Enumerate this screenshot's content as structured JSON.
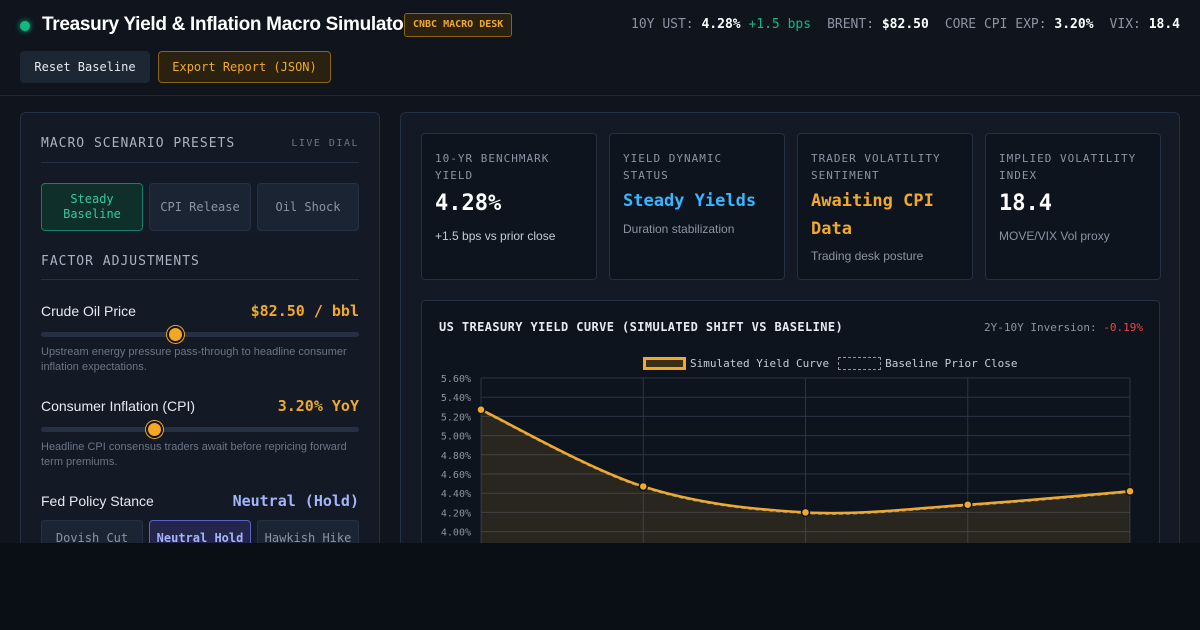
{
  "header": {
    "title": "Treasury Yield & Inflation Macro Simulator",
    "badge": "CNBC MACRO DESK",
    "ticker": {
      "ust_label": "10Y UST:",
      "ust_value": "4.28%",
      "ust_change": "+1.5 bps",
      "brent_label": "BRENT:",
      "brent_value": "$82.50",
      "cpi_label": "CORE CPI EXP:",
      "cpi_value": "3.20%",
      "vix_label": "VIX:",
      "vix_value": "18.4"
    },
    "reset_label": "Reset Baseline",
    "export_label": "Export Report (JSON)"
  },
  "controls": {
    "presets_title": "MACRO SCENARIO PRESETS",
    "live_dial": "LIVE DIAL",
    "presets": [
      "Steady Baseline",
      "CPI Release",
      "Oil Shock"
    ],
    "active_preset": 0,
    "factors_title": "FACTOR ADJUSTMENTS",
    "oil": {
      "label": "Crude Oil Price",
      "value": "$82.50 / bbl",
      "level": 0.42,
      "desc": "Upstream energy pressure pass-through to headline consumer inflation expectations."
    },
    "cpi": {
      "label": "Consumer Inflation (CPI)",
      "value": "3.20% YoY",
      "level": 0.35,
      "desc": "Headline CPI consensus traders await before repricing forward term premiums."
    },
    "fed": {
      "label": "Fed Policy Stance",
      "value": "Neutral (Hold)",
      "options": [
        "Dovish Cut",
        "Neutral Hold",
        "Hawkish Hike"
      ],
      "active": 1
    }
  },
  "kpis": [
    {
      "label": "10-YR BENCHMARK YIELD",
      "value": "4.28%",
      "sub": "+1.5 bps  vs prior close"
    },
    {
      "label": "YIELD DYNAMIC STATUS",
      "value": "Steady Yields",
      "sub": "Duration stabilization"
    },
    {
      "label": "TRADER VOLATILITY SENTIMENT",
      "value": "Awaiting CPI Data",
      "sub": "Trading desk posture"
    },
    {
      "label": "IMPLIED VOLATILITY INDEX",
      "value": "18.4",
      "sub": "MOVE/VIX Vol proxy"
    }
  ],
  "chart": {
    "title": "US TREASURY YIELD CURVE (SIMULATED SHIFT VS BASELINE)",
    "inversion_label": "2Y-10Y Inversion:",
    "inversion_value": "-0.19%",
    "legend_sim": "Simulated Yield Curve",
    "legend_base": "Baseline Prior Close",
    "colors": {
      "simulated": "#f0a92a",
      "baseline": "#8b94a3",
      "grid": "#2a3444"
    }
  },
  "chart_data": {
    "type": "line",
    "y_tick_labels": [
      "5.60%",
      "5.40%",
      "5.20%",
      "5.00%",
      "4.80%",
      "4.60%",
      "4.40%",
      "4.20%",
      "4.00%"
    ],
    "ylim": [
      3.8,
      5.6
    ],
    "grid": true,
    "legend_position": "top-center",
    "series": [
      {
        "name": "Simulated Yield Curve",
        "values": [
          5.27,
          4.47,
          4.2,
          4.28,
          4.42
        ]
      },
      {
        "name": "Baseline Prior Close",
        "values": [
          5.26,
          4.46,
          4.19,
          4.27,
          4.41
        ]
      }
    ]
  }
}
